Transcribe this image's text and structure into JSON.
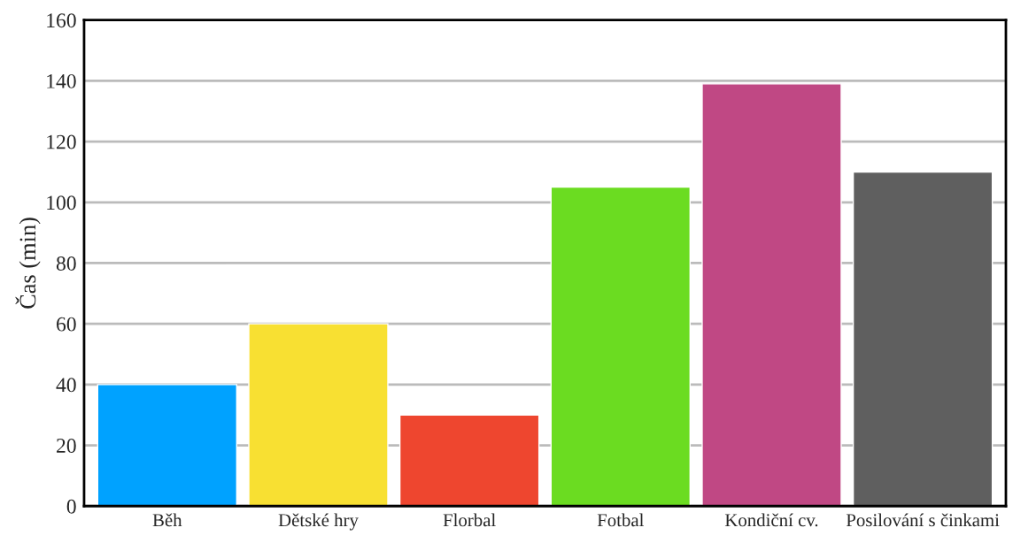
{
  "chart_data": {
    "type": "bar",
    "ylabel": "Čas (min)",
    "categories": [
      "Běh",
      "Dětské hry",
      "Florbal",
      "Fotbal",
      "Kondiční cv.",
      "Posilování s činkami"
    ],
    "values": [
      40,
      60,
      30,
      105,
      139,
      110
    ],
    "colors": [
      "#00a2ff",
      "#f8e032",
      "#ee462f",
      "#6bdc21",
      "#c04884",
      "#5f5f5f"
    ],
    "ylim": [
      0,
      160
    ],
    "yticks": [
      0,
      20,
      40,
      60,
      80,
      100,
      120,
      140,
      160
    ],
    "grid": "y"
  }
}
